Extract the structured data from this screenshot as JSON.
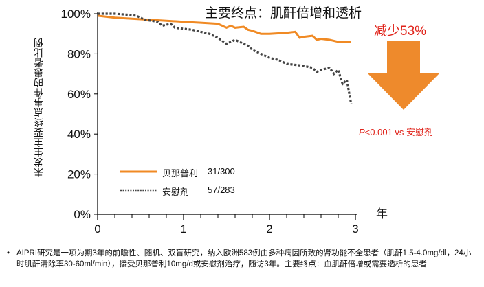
{
  "chart_data": {
    "type": "line",
    "title": "主要终点：肌酐倍增和透析",
    "ylabel": "未发生主要终点事件的患者比例",
    "xlabel": "年",
    "xlim": [
      0,
      3
    ],
    "ylim": [
      0,
      100
    ],
    "x_ticks": [
      "0",
      "1",
      "2",
      "3"
    ],
    "y_ticks": [
      "0%",
      "20%",
      "40%",
      "60%",
      "80%",
      "100%"
    ],
    "series": [
      {
        "name": "贝那普利",
        "count": "31/300",
        "color": "#f08a24",
        "style": "solid",
        "x": [
          0,
          0.2,
          0.4,
          0.6,
          0.8,
          1.0,
          1.2,
          1.4,
          1.5,
          1.55,
          1.6,
          1.7,
          1.75,
          1.8,
          1.9,
          2.0,
          2.2,
          2.3,
          2.35,
          2.4,
          2.5,
          2.55,
          2.6,
          2.7,
          2.8,
          2.9,
          2.95
        ],
        "y": [
          99,
          98,
          97.5,
          97,
          96.5,
          96,
          95.5,
          95,
          93,
          94,
          93,
          93.5,
          92,
          91.5,
          90,
          90,
          90.5,
          91,
          88,
          88.5,
          89,
          87,
          87.5,
          87,
          86,
          86,
          86
        ]
      },
      {
        "name": "安慰剂",
        "count": "57/283",
        "color": "#444444",
        "style": "dotted",
        "x": [
          0,
          0.1,
          0.2,
          0.35,
          0.45,
          0.55,
          0.7,
          0.75,
          0.85,
          0.9,
          1.0,
          1.1,
          1.2,
          1.3,
          1.4,
          1.5,
          1.6,
          1.7,
          1.75,
          1.8,
          1.9,
          2.0,
          2.1,
          2.2,
          2.3,
          2.4,
          2.5,
          2.55,
          2.6,
          2.7,
          2.75,
          2.8,
          2.85,
          2.9,
          2.95
        ],
        "y": [
          100,
          100,
          100,
          99.5,
          99,
          97,
          96,
          94,
          95,
          93,
          92.5,
          92,
          91,
          90,
          88,
          85,
          87,
          85,
          84,
          82,
          80,
          78,
          77,
          75,
          74.5,
          74,
          73,
          71,
          72,
          73,
          70,
          72,
          65,
          67,
          55
        ]
      }
    ],
    "annotations": {
      "reduction": "减少53%",
      "p_value_label": "P",
      "p_value_rest": "<0.001 vs 安慰剂"
    }
  },
  "footnote": {
    "bullet": "•",
    "text": "AIPRI研究是一项为期3年的前瞻性、随机、双盲研究，纳入欧洲583例由多种病因所致的肾功能不全患者（肌酐1.5-4.0mg/dl，24小时肌酐清除率30-60ml/min），接受贝那普利10mg/d或安慰剂治疗，随访3年。主要终点：血肌酐倍增或需要透析的患者"
  },
  "colors": {
    "orange": "#f08a24",
    "arrow": "#ee8a2c",
    "red_text": "#e0231a",
    "axis": "#000000"
  }
}
